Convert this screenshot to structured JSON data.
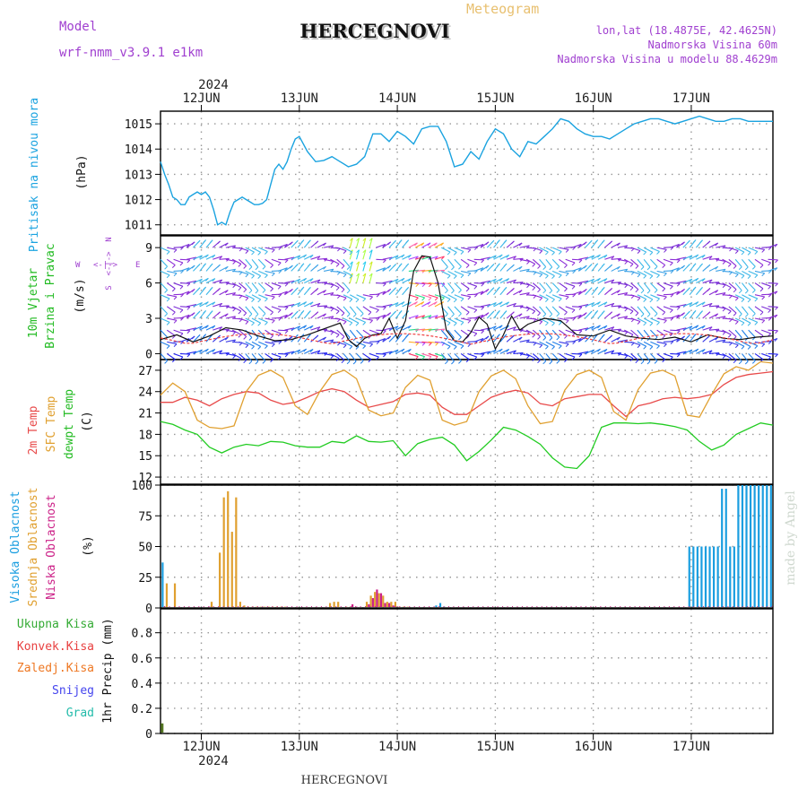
{
  "header": {
    "model_label": "Model",
    "model_name": "wrf-nmm_v3.9.1  e1km",
    "title": "HERCEGNOVI",
    "subtitle": "Meteogram",
    "lonlat": "lon,lat (18.4875E, 42.4625N)",
    "elevation": "Nadmorska Visina 60m",
    "model_elevation": "Nadmorska Visina u modelu 88.4629m",
    "footer_station": "HERCEGNOVI",
    "credit": "made by Angel"
  },
  "time_axis": {
    "year": "2024",
    "day_labels": [
      "12JUN",
      "13JUN",
      "14JUN",
      "15JUN",
      "16JUN",
      "17JUN"
    ],
    "start_hour": -10,
    "end_hour": 140
  },
  "panel_labels": {
    "pressure": {
      "name": "Pritisak na nivou mora",
      "unit": "(hPa)"
    },
    "wind": {
      "name1": "10m Vjetar",
      "name2": "Brzina i Pravac",
      "unit": "(m/s)",
      "dir_w": "W",
      "dir_e": "E",
      "dir_n": "N",
      "dir_s": "S"
    },
    "temp": {
      "name1": "2m Temp",
      "name2": "SFC Temp",
      "name3": "dewpt Temp",
      "unit": "(C)"
    },
    "cloud": {
      "name1": "Visoka Oblacnost",
      "name2": "Srednja Oblacnost",
      "name3": "Niska Oblacnost",
      "unit": "(%)"
    },
    "precip": {
      "unit": "1hr Precip (mm)",
      "legend": [
        "Ukupna Kisa",
        "Konvek.Kisa",
        "Zaledj.Kisa",
        "Snijeg",
        "Grad"
      ]
    }
  },
  "colors": {
    "pressure": "#1aa3e0",
    "temp2m": "#e84a4a",
    "sfc": "#e0a030",
    "dew": "#22cc22",
    "cloud_high": "#1a9ee0",
    "cloud_mid": "#e0a030",
    "cloud_low": "#cc2288",
    "precip_total": "#33aa33",
    "precip_conv": "#e84040",
    "precip_frz": "#ee7722",
    "precip_snow": "#4444ee",
    "precip_hail": "#22bbaa",
    "grid": "#999999",
    "model": "#a040d0"
  },
  "chart_data": [
    {
      "type": "line",
      "name": "pressure",
      "ylabel": "(hPa)",
      "ylim": [
        1010.6,
        1015.5
      ],
      "yticks": [
        1011,
        1012,
        1013,
        1014,
        1015
      ],
      "x": [
        -10,
        -9,
        -8,
        -7,
        -6,
        -5,
        -4,
        -3,
        -2,
        -1,
        0,
        1,
        2,
        3,
        4,
        5,
        6,
        7,
        8,
        9,
        10,
        11,
        12,
        13,
        14,
        15,
        16,
        17,
        18,
        19,
        20,
        21,
        22,
        23,
        24,
        26,
        28,
        30,
        32,
        34,
        36,
        38,
        40,
        42,
        44,
        46,
        48,
        50,
        52,
        54,
        56,
        58,
        60,
        62,
        64,
        66,
        68,
        70,
        72,
        74,
        76,
        78,
        80,
        82,
        84,
        86,
        88,
        90,
        92,
        94,
        96,
        98,
        100,
        102,
        104,
        106,
        108,
        110,
        112,
        114,
        116,
        118,
        120,
        122,
        124,
        126,
        128,
        130,
        132,
        134,
        136,
        138,
        140
      ],
      "values": [
        1013.5,
        1013,
        1012.6,
        1012.1,
        1012.0,
        1011.8,
        1011.8,
        1012.1,
        1012.2,
        1012.3,
        1012.2,
        1012.3,
        1012.1,
        1011.6,
        1011.0,
        1011.1,
        1011.0,
        1011.5,
        1011.9,
        1012.0,
        1012.1,
        1012.0,
        1011.9,
        1011.8,
        1011.8,
        1011.85,
        1012.0,
        1012.6,
        1013.2,
        1013.4,
        1013.2,
        1013.5,
        1014.0,
        1014.4,
        1014.5,
        1013.9,
        1013.5,
        1013.55,
        1013.7,
        1013.5,
        1013.3,
        1013.4,
        1013.7,
        1014.6,
        1014.6,
        1014.3,
        1014.7,
        1014.5,
        1014.2,
        1014.8,
        1014.9,
        1014.9,
        1014.3,
        1013.3,
        1013.4,
        1013.9,
        1013.6,
        1014.3,
        1014.8,
        1014.6,
        1014.0,
        1013.7,
        1014.3,
        1014.2,
        1014.5,
        1014.8,
        1015.2,
        1015.1,
        1014.8,
        1014.6,
        1014.5,
        1014.5,
        1014.4,
        1014.6,
        1014.8,
        1015.0,
        1015.1,
        1015.2,
        1015.2,
        1015.1,
        1015.0,
        1015.1,
        1015.2,
        1015.3,
        1015.2,
        1015.1,
        1015.1,
        1015.2,
        1015.2,
        1015.1,
        1015.1,
        1015.1,
        1015.1
      ]
    },
    {
      "type": "line",
      "name": "wind_speed",
      "ylabel": "(m/s)",
      "ylim": [
        -0.5,
        10
      ],
      "yticks": [
        0,
        3,
        6,
        9
      ],
      "x": [
        -10,
        -6,
        -2,
        2,
        6,
        10,
        14,
        18,
        22,
        26,
        30,
        34,
        36,
        38,
        40,
        42,
        44,
        46,
        48,
        50,
        52,
        54,
        56,
        58,
        60,
        62,
        64,
        66,
        68,
        70,
        72,
        74,
        76,
        78,
        80,
        84,
        88,
        92,
        96,
        100,
        104,
        108,
        112,
        116,
        120,
        124,
        128,
        132,
        136,
        140
      ],
      "values": [
        1.2,
        1.6,
        1.0,
        1.5,
        2.2,
        2.0,
        1.5,
        1.1,
        1.2,
        1.6,
        2.1,
        2.6,
        1.2,
        0.6,
        1.3,
        1.6,
        1.7,
        3.0,
        1.3,
        2.8,
        7.0,
        8.3,
        8.2,
        6.0,
        2.0,
        1.1,
        1.0,
        1.8,
        3.1,
        2.5,
        0.4,
        1.6,
        3.2,
        2.0,
        2.5,
        3.0,
        2.8,
        1.6,
        1.5,
        2.0,
        1.5,
        1.3,
        1.2,
        1.4,
        1.0,
        1.6,
        1.3,
        1.2,
        1.4,
        1.5
      ]
    },
    {
      "type": "line",
      "name": "temperature",
      "ylabel": "(C)",
      "ylim": [
        11,
        28.5
      ],
      "yticks": [
        12,
        15,
        18,
        21,
        24,
        27
      ],
      "x": [
        -10,
        -7,
        -4,
        -1,
        2,
        5,
        8,
        11,
        14,
        17,
        20,
        23,
        26,
        29,
        32,
        35,
        38,
        41,
        44,
        47,
        50,
        53,
        56,
        59,
        62,
        65,
        68,
        71,
        74,
        77,
        80,
        83,
        86,
        89,
        92,
        95,
        98,
        101,
        104,
        107,
        110,
        113,
        116,
        119,
        122,
        125,
        128,
        131,
        134,
        137,
        140
      ],
      "series": [
        {
          "name": "2m Temp",
          "values": [
            22.5,
            22.5,
            23.2,
            22.8,
            22.0,
            23.0,
            23.6,
            24.0,
            23.8,
            22.8,
            22.2,
            22.5,
            23.2,
            24.0,
            24.4,
            24.0,
            22.8,
            21.8,
            22.2,
            22.6,
            23.6,
            23.8,
            23.5,
            21.8,
            20.8,
            20.8,
            22.0,
            23.2,
            23.8,
            24.2,
            23.8,
            22.3,
            22.0,
            23.0,
            23.3,
            23.6,
            23.6,
            22.0,
            20.5,
            22.0,
            22.4,
            23.0,
            23.2,
            23.0,
            23.2,
            23.6,
            25.0,
            26.0,
            26.4,
            26.6,
            26.8
          ]
        },
        {
          "name": "SFC Temp",
          "values": [
            23.5,
            25.2,
            24.0,
            20.0,
            19.0,
            18.8,
            19.2,
            24.0,
            26.3,
            27.0,
            26.0,
            22.0,
            20.8,
            24.0,
            26.4,
            27.0,
            25.8,
            21.4,
            20.6,
            21.0,
            24.6,
            26.3,
            25.6,
            20.0,
            19.3,
            19.8,
            24.0,
            26.2,
            27.0,
            25.8,
            22.0,
            19.5,
            19.8,
            24.2,
            26.4,
            27.0,
            26.0,
            21.2,
            20.0,
            24.3,
            26.6,
            27.0,
            26.2,
            20.7,
            20.4,
            23.6,
            26.5,
            27.5,
            27.0,
            28.2,
            28.0
          ]
        },
        {
          "name": "dewpt Temp",
          "values": [
            19.8,
            19.4,
            18.6,
            18.0,
            16.2,
            15.4,
            16.2,
            16.6,
            16.4,
            17.0,
            16.9,
            16.4,
            16.2,
            16.2,
            17.0,
            16.8,
            17.8,
            17.0,
            16.9,
            17.1,
            15.0,
            16.7,
            17.3,
            17.6,
            16.5,
            14.3,
            15.6,
            17.2,
            19.0,
            18.6,
            17.7,
            16.6,
            14.7,
            13.4,
            13.2,
            15.0,
            19.0,
            19.6,
            19.6,
            19.5,
            19.6,
            19.4,
            19.1,
            18.6,
            17.0,
            15.8,
            16.5,
            18.0,
            18.8,
            19.6,
            19.3
          ]
        }
      ]
    },
    {
      "type": "bar",
      "name": "cloud_cover",
      "ylabel": "(%)",
      "ylim": [
        0,
        100
      ],
      "yticks": [
        0,
        25,
        50,
        75,
        100
      ],
      "series": [
        {
          "name": "Visoka Oblacnost",
          "x": [
            -9.5,
            57.5,
            58.5,
            59.5,
            119.5,
            120.5,
            121.5,
            122.5,
            123.5,
            124.5,
            125.5,
            126.5,
            127.5,
            128.5,
            129.5,
            130.5,
            131.5,
            132.5,
            133.5,
            134.5,
            135.5,
            136.5,
            137.5,
            138.5,
            139.5
          ],
          "values": [
            37,
            2,
            4,
            1,
            50,
            50,
            50,
            50,
            50,
            50,
            50,
            50,
            97,
            97,
            50,
            50,
            100,
            100,
            100,
            100,
            100,
            100,
            100,
            100,
            100
          ]
        },
        {
          "name": "Srednja Oblacnost",
          "x": [
            -8.5,
            -6.5,
            2.5,
            4.5,
            5.5,
            6.5,
            7.5,
            8.5,
            9.5,
            10.5,
            11.5,
            12.5,
            13.5,
            14.5,
            15.5,
            16.5,
            17.5,
            18.5,
            19.5,
            20.5,
            31.5,
            32.5,
            33.5,
            35.5,
            36.5,
            40.5,
            41.5,
            42.5,
            43.5,
            44.5,
            45.5,
            46.5,
            47.5,
            48.5,
            49.5,
            50.5
          ],
          "values": [
            20,
            20,
            5,
            45,
            90,
            95,
            62,
            90,
            5,
            2,
            1,
            1,
            1,
            1,
            1,
            1,
            1,
            1,
            1,
            1,
            4,
            5,
            5,
            1,
            1,
            5,
            10,
            13,
            12,
            10,
            5,
            5,
            5,
            1,
            1,
            1
          ]
        },
        {
          "name": "Niska Oblacnost",
          "x": [
            -9.0,
            2.0,
            37.0,
            38.0,
            41.0,
            42.0,
            43.0,
            44.0,
            45.0,
            46.0,
            47.0,
            48.0
          ],
          "values": [
            1,
            1,
            3,
            1,
            3,
            8,
            15,
            12,
            4,
            4,
            2,
            1
          ]
        }
      ]
    },
    {
      "type": "bar",
      "name": "precipitation",
      "ylabel": "1hr Precip (mm)",
      "ylim": [
        0,
        0.99
      ],
      "yticks": [
        0,
        0.2,
        0.4,
        0.6,
        0.8
      ],
      "series": [
        {
          "name": "Ukupna Kisa",
          "x": [
            -9.6
          ],
          "values": [
            0.08
          ]
        }
      ]
    }
  ]
}
